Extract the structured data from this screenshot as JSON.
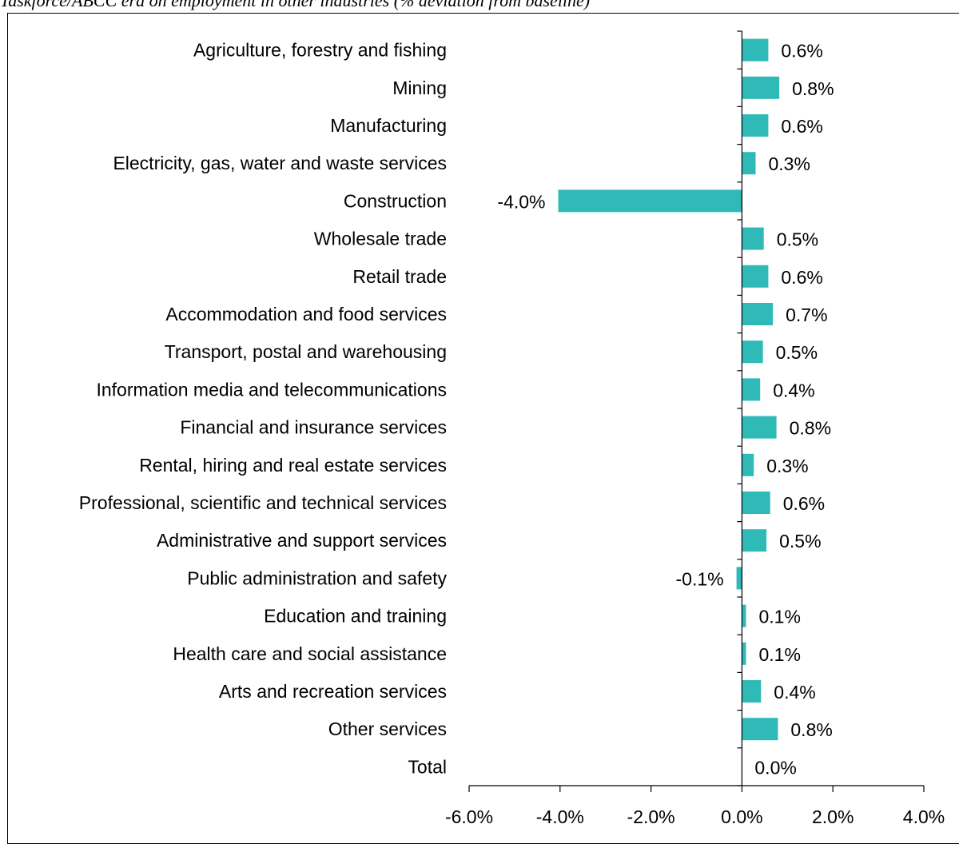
{
  "caption": "Taskforce/ABCC era on employment in other industries (% deviation from baseline)",
  "colors": {
    "bar": "#2FB9B7",
    "axis": "#000000"
  },
  "chart_data": {
    "type": "bar",
    "orientation": "horizontal",
    "title": "",
    "xlabel": "",
    "ylabel": "",
    "xlim": [
      -6.0,
      4.0
    ],
    "xticks": [
      -6.0,
      -4.0,
      -2.0,
      0.0,
      2.0,
      4.0
    ],
    "xtick_labels": [
      "-6.0%",
      "-4.0%",
      "-2.0%",
      "0.0%",
      "2.0%",
      "4.0%"
    ],
    "grid": false,
    "legend": "none",
    "categories": [
      "Agriculture, forestry and fishing",
      "Mining",
      "Manufacturing",
      "Electricity, gas, water and waste services",
      "Construction",
      "Wholesale trade",
      "Retail trade",
      "Accommodation and food services",
      "Transport, postal and warehousing",
      "Information media and telecommunications",
      "Financial and insurance services",
      "Rental, hiring and real estate services",
      "Professional, scientific and technical services",
      "Administrative and support services",
      "Public administration and safety",
      "Education and training",
      "Health care and social assistance",
      "Arts and recreation services",
      "Other services",
      "Total"
    ],
    "values": [
      0.58,
      0.82,
      0.58,
      0.3,
      -4.04,
      0.48,
      0.58,
      0.68,
      0.46,
      0.4,
      0.76,
      0.26,
      0.62,
      0.54,
      -0.12,
      0.09,
      0.09,
      0.42,
      0.79,
      0.0
    ],
    "data_labels": [
      "0.6%",
      "0.8%",
      "0.6%",
      "0.3%",
      "-4.0%",
      "0.5%",
      "0.6%",
      "0.7%",
      "0.5%",
      "0.4%",
      "0.8%",
      "0.3%",
      "0.6%",
      "0.5%",
      "-0.1%",
      "0.1%",
      "0.1%",
      "0.4%",
      "0.8%",
      "0.0%"
    ]
  }
}
